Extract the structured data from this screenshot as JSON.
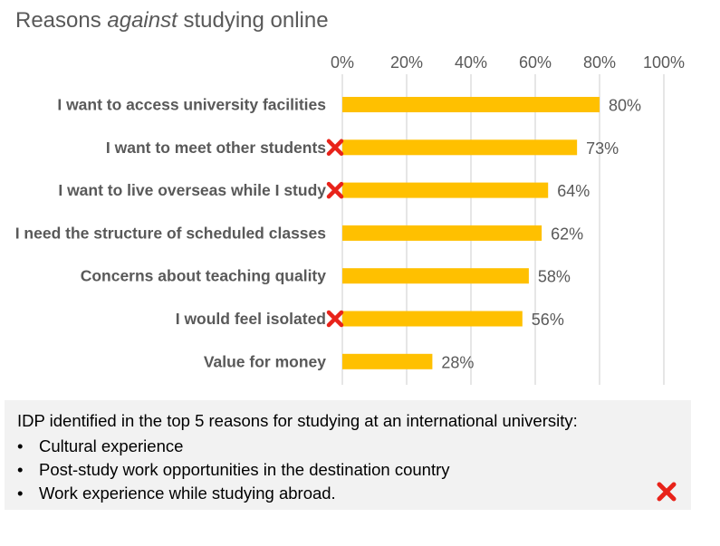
{
  "title": {
    "prefix": "Reasons ",
    "emphasis": "against",
    "suffix": " studying online"
  },
  "chart_data": {
    "type": "bar",
    "orientation": "horizontal",
    "title": "Reasons against studying online",
    "categories": [
      "I want to access university facilities",
      "I want to meet other students",
      "I want to live overseas while I study",
      "I need the structure of scheduled classes",
      "Concerns about teaching quality",
      "I would feel isolated",
      "Value for money"
    ],
    "values": [
      80,
      73,
      64,
      62,
      58,
      56,
      28
    ],
    "data_labels": [
      "80%",
      "73%",
      "64%",
      "62%",
      "58%",
      "56%",
      "28%"
    ],
    "marked": [
      false,
      true,
      true,
      false,
      false,
      true,
      false
    ],
    "xlim": [
      0,
      100
    ],
    "x_ticks": [
      "0%",
      "20%",
      "40%",
      "60%",
      "80%",
      "100%"
    ],
    "x_axis_position": "top",
    "grid": true,
    "legend": "none",
    "bar_color": "#FFC000",
    "grid_color": "#d9d9d9",
    "marker_color": "#e8231a",
    "marker_icon": "red-x-icon"
  },
  "note": {
    "title": "IDP identified in the top 5 reasons for studying at an international university:",
    "bullet": "•",
    "items": [
      "Cultural experience",
      "Post-study work opportunities in the destination country",
      "Work experience while studying abroad."
    ],
    "marker_icon": "red-x-icon"
  }
}
